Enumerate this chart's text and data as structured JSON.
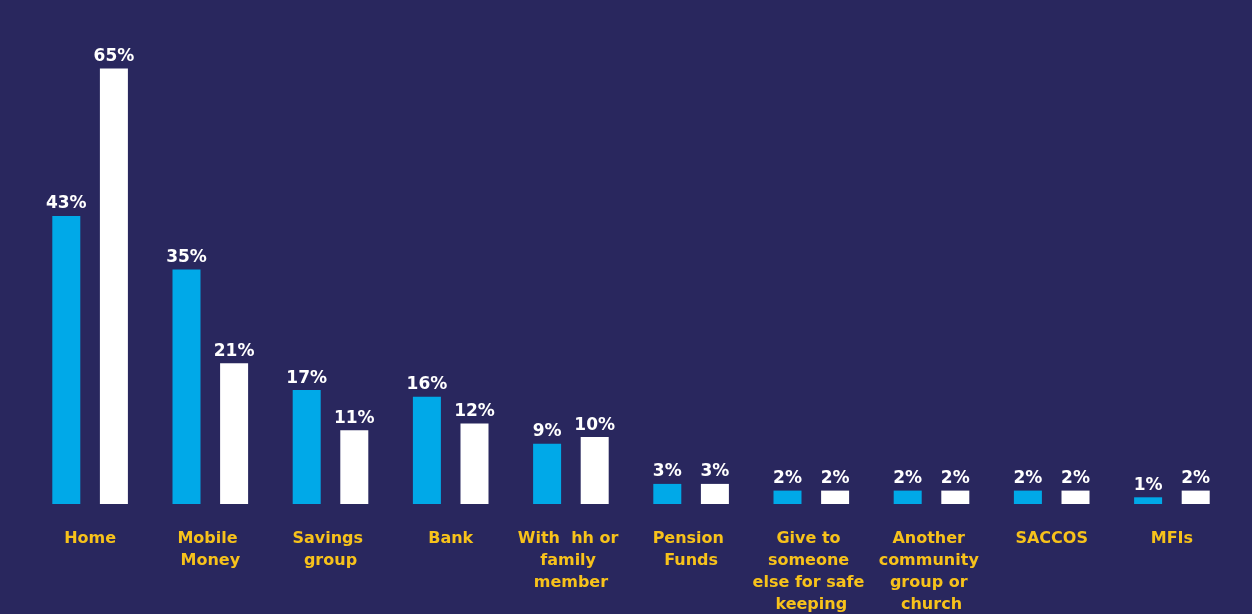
{
  "chart_data": {
    "type": "bar",
    "categories": [
      "Home",
      "Mobile Money",
      "Savings group",
      "Bank",
      "With  hh or family member",
      "Pension Funds",
      "Give to someone else for safe keeping",
      "Another community group or church",
      "SACCOS",
      "MFIs"
    ],
    "series": [
      {
        "color": "#00a9e8",
        "values": [
          43,
          35,
          17,
          16,
          9,
          3,
          2,
          2,
          2,
          1
        ],
        "value_labels": [
          "43%",
          "35%",
          "17%",
          "16%",
          "9%",
          "3%",
          "2%",
          "2%",
          "2%",
          "1%"
        ]
      },
      {
        "color": "#ffffff",
        "values": [
          65,
          21,
          11,
          12,
          10,
          3,
          2,
          2,
          2,
          2
        ],
        "value_labels": [
          "65%",
          "21%",
          "11%",
          "12%",
          "10%",
          "3%",
          "2%",
          "2%",
          "2%",
          "2%"
        ]
      }
    ],
    "grid": false
  }
}
